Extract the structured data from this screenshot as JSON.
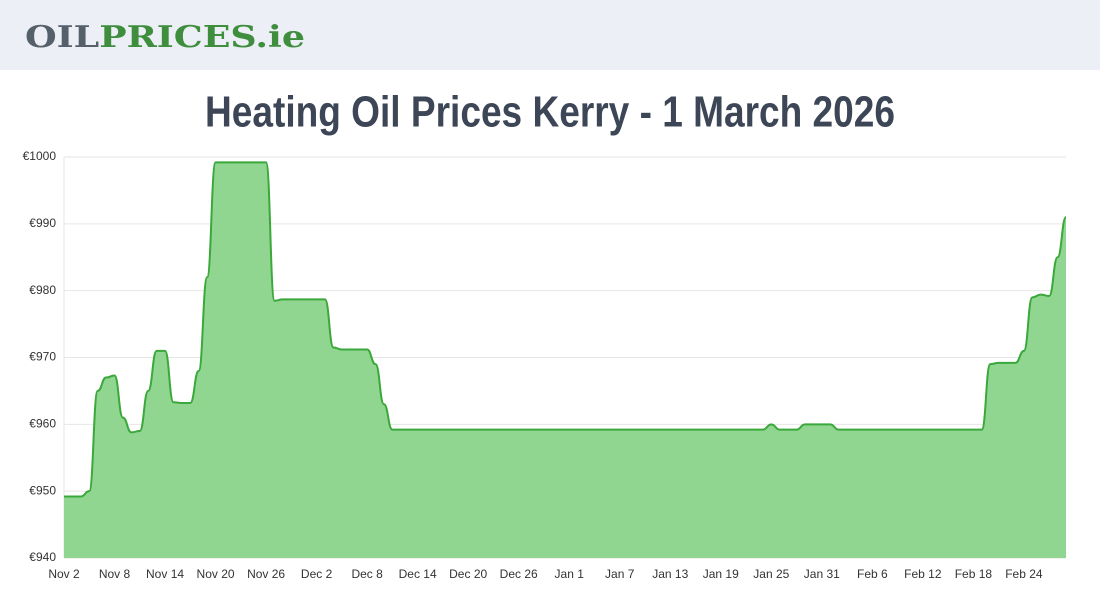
{
  "header": {
    "logo_dark": "OIL",
    "logo_light": "PRICES.ie"
  },
  "chart_data": {
    "type": "area",
    "title": "Heating Oil Prices Kerry - 1 March 2026",
    "categories": [
      "Nov 2",
      null,
      null,
      null,
      null,
      null,
      "Nov 8",
      null,
      null,
      null,
      null,
      null,
      "Nov 14",
      null,
      null,
      null,
      null,
      null,
      "Nov 20",
      null,
      null,
      null,
      null,
      null,
      "Nov 26",
      null,
      null,
      null,
      null,
      null,
      "Dec 2",
      null,
      null,
      null,
      null,
      null,
      "Dec 8",
      null,
      null,
      null,
      null,
      null,
      "Dec 14",
      null,
      null,
      null,
      null,
      null,
      "Dec 20",
      null,
      null,
      null,
      null,
      null,
      "Dec 26",
      null,
      null,
      null,
      null,
      null,
      "Jan 1",
      null,
      null,
      null,
      null,
      null,
      "Jan 7",
      null,
      null,
      null,
      null,
      null,
      "Jan 13",
      null,
      null,
      null,
      null,
      null,
      "Jan 19",
      null,
      null,
      null,
      null,
      null,
      "Jan 25",
      null,
      null,
      null,
      null,
      null,
      "Jan 31",
      null,
      null,
      null,
      null,
      null,
      "Feb 6",
      null,
      null,
      null,
      null,
      null,
      "Feb 12",
      null,
      null,
      null,
      null,
      null,
      "Feb 18",
      null,
      null,
      null,
      null,
      null,
      "Feb 24",
      null,
      null,
      null,
      null,
      null
    ],
    "values": [
      949.2,
      949.2,
      949.2,
      950,
      965,
      967,
      967.3,
      961,
      958.8,
      959,
      965,
      971,
      971,
      963.3,
      963.2,
      963.2,
      968,
      982,
      999.2,
      999.2,
      999.2,
      999.2,
      999.2,
      999.2,
      999.2,
      978.5,
      978.7,
      978.7,
      978.7,
      978.7,
      978.7,
      978.7,
      971.5,
      971.2,
      971.2,
      971.2,
      971.2,
      969,
      963,
      959.2,
      959.2,
      959.2,
      959.2,
      959.2,
      959.2,
      959.2,
      959.2,
      959.2,
      959.2,
      959.2,
      959.2,
      959.2,
      959.2,
      959.2,
      959.2,
      959.2,
      959.2,
      959.2,
      959.2,
      959.2,
      959.2,
      959.2,
      959.2,
      959.2,
      959.2,
      959.2,
      959.2,
      959.2,
      959.2,
      959.2,
      959.2,
      959.2,
      959.2,
      959.2,
      959.2,
      959.2,
      959.2,
      959.2,
      959.2,
      959.2,
      959.2,
      959.2,
      959.2,
      959.2,
      960,
      959.2,
      959.2,
      959.2,
      960,
      960,
      960,
      960,
      959.2,
      959.2,
      959.2,
      959.2,
      959.2,
      959.2,
      959.2,
      959.2,
      959.2,
      959.2,
      959.2,
      959.2,
      959.2,
      959.2,
      959.2,
      959.2,
      959.2,
      959.2,
      969,
      969.2,
      969.2,
      969.2,
      971,
      979,
      979.4,
      979.2,
      985,
      991
    ],
    "color": "#3aa83a",
    "fill": "#90d690",
    "ylim": [
      940,
      1000
    ],
    "yticks": [
      {
        "value": 940,
        "label": "€940"
      },
      {
        "value": 950,
        "label": "€950"
      },
      {
        "value": 960,
        "label": "€960"
      },
      {
        "value": 970,
        "label": "€970"
      },
      {
        "value": 980,
        "label": "€980"
      },
      {
        "value": 990,
        "label": "€990"
      },
      {
        "value": 1000,
        "label": "€1000"
      }
    ],
    "grid": true
  }
}
